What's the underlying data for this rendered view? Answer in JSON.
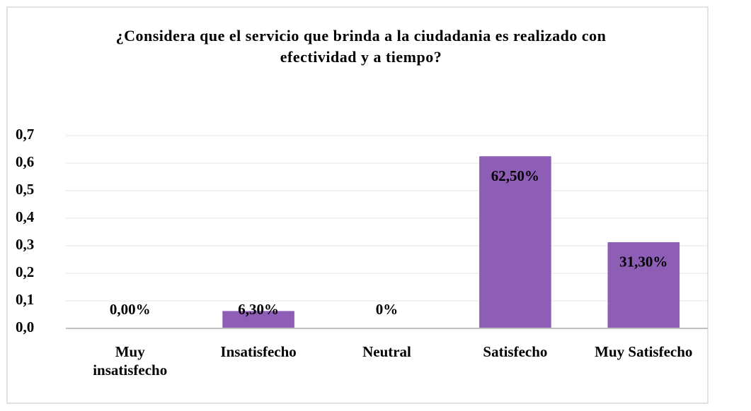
{
  "chart_data": {
    "type": "bar",
    "title": "¿Considera que el servicio que brinda a la ciudadania es realizado con efectividad y a tiempo?",
    "categories": [
      "Muy insatisfecho",
      "Insatisfecho",
      "Neutral",
      "Satisfecho",
      "Muy Satisfecho"
    ],
    "values": [
      0,
      0.063,
      0,
      0.625,
      0.313
    ],
    "value_labels": [
      "0,00%",
      "6,30%",
      "0%",
      "62,50%",
      "31,30%"
    ],
    "color": "#8e5db5",
    "ylim": [
      0,
      0.7
    ],
    "yticks": [
      {
        "value": 0,
        "label": "0,0"
      },
      {
        "value": 0.1,
        "label": "0,1"
      },
      {
        "value": 0.2,
        "label": "0,2"
      },
      {
        "value": 0.3,
        "label": "0,3"
      },
      {
        "value": 0.4,
        "label": "0,4"
      },
      {
        "value": 0.5,
        "label": "0,5"
      },
      {
        "value": 0.6,
        "label": "0,6"
      },
      {
        "value": 0.7,
        "label": "0,7"
      }
    ],
    "grid": true
  }
}
